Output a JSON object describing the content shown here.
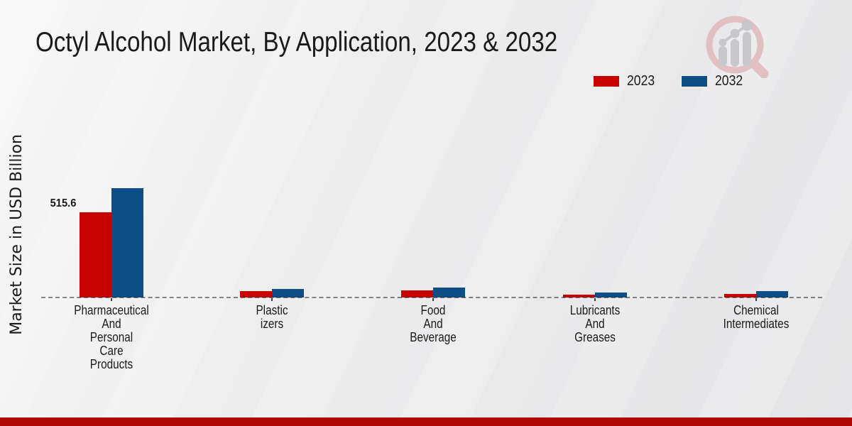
{
  "chart_data": {
    "type": "bar",
    "title": "Octyl Alcohol Market, By Application, 2023 & 2032",
    "ylabel": "Market Size in USD Billion",
    "xlabel": "",
    "unit": "USD Billion",
    "categories": [
      "Pharmaceutical And Personal Care Products",
      "Plasticizers",
      "Food And Beverage",
      "Lubricants And Greases",
      "Chemical Intermediates"
    ],
    "category_label_lines": [
      [
        "Pharmaceutical",
        "And",
        "Personal",
        "Care",
        "Products"
      ],
      [
        "Plastic",
        "izers"
      ],
      [
        "Food",
        "And",
        "Beverage"
      ],
      [
        "Lubricants",
        "And",
        "Greases"
      ],
      [
        "Chemical",
        "Intermediates"
      ]
    ],
    "series": [
      {
        "name": "2023",
        "color": "#c80202",
        "values": [
          515.6,
          37.5,
          43.0,
          17.5,
          23.0
        ]
      },
      {
        "name": "2032",
        "color": "#0f4d87",
        "values": [
          666.0,
          53.0,
          61.5,
          29.0,
          37.5
        ]
      }
    ],
    "data_label": {
      "series": "2023",
      "category_index": 0,
      "text": "515.6"
    },
    "axis": {
      "baseline_style": "dashed",
      "gridlines": false,
      "y_tick_labels_visible": false
    },
    "legend_position": "top-right",
    "ylim": [
      0,
      700
    ]
  },
  "branding": {
    "logo_icon": "magnifier-bar-chart-logo",
    "footer_band_color": "#b00707"
  },
  "style": {
    "background": "#ebebec",
    "bar_2023": "#c80202",
    "bar_2032": "#0f4d87",
    "dashed_axis": "#7c7c7c",
    "text": "#1a1a1a"
  }
}
